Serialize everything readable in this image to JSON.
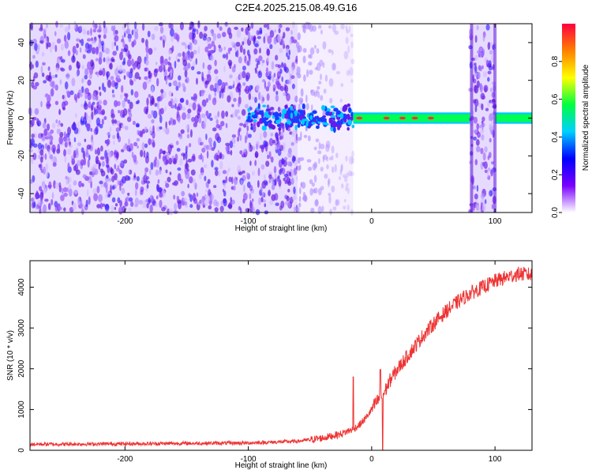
{
  "title": "C2E4.2025.215.08.49.G16",
  "chart_data": [
    {
      "type": "heatmap",
      "xlabel": "Height of straight line (km)",
      "ylabel": "Frequency (Hz)",
      "xlim": [
        -277,
        130
      ],
      "ylim": [
        -50,
        50
      ],
      "xticks": [
        -200,
        -100,
        0,
        100
      ],
      "yticks": [
        -40,
        -20,
        0,
        20,
        40
      ],
      "colorbar": {
        "label": "Normalized spectral amplitude",
        "range": [
          0,
          1
        ],
        "ticks": [
          "0.0",
          "0.2",
          "0.4",
          "0.6",
          "0.8"
        ],
        "colormap": [
          "#ffffff",
          "#7a00ff",
          "#0000ff",
          "#00d0ff",
          "#00ff40",
          "#ffff00",
          "#ff8000",
          "#ff0040"
        ]
      },
      "regions": [
        {
          "x": [
            -277,
            -60
          ],
          "freq": [
            -50,
            50
          ],
          "amplitude": "0.05-0.25",
          "color": "#7a20f0"
        },
        {
          "x": [
            -60,
            -15
          ],
          "freq": [
            -50,
            50
          ],
          "amplitude": "0.02-0.15",
          "color": "#c8a8ff"
        },
        {
          "x": [
            -100,
            -15
          ],
          "freq": [
            -7,
            7
          ],
          "amplitude": "0.2-0.45",
          "color": "#2050ff"
        },
        {
          "x": [
            -15,
            80
          ],
          "freq": [
            -2,
            2
          ],
          "amplitude": "0.4-0.95",
          "color": "#00ff50"
        },
        {
          "x": [
            80,
            100
          ],
          "freq": [
            -50,
            50
          ],
          "amplitude": "0.05-0.3",
          "color": "#b080ff"
        },
        {
          "x": [
            100,
            130
          ],
          "freq": [
            -2,
            2
          ],
          "amplitude": "0.4-0.6",
          "color": "#00ff50"
        }
      ]
    },
    {
      "type": "line",
      "xlabel": "Height of straight line (km)",
      "ylabel": "SNR (10 * v/v)",
      "xlim": [
        -277,
        130
      ],
      "ylim": [
        0,
        4650
      ],
      "xticks": [
        -200,
        -100,
        0,
        100
      ],
      "yticks": [
        0,
        1000,
        2000,
        3000,
        4000
      ],
      "color": "#ee3333",
      "series": [
        {
          "x": [
            -277,
            -250,
            -200,
            -150,
            -100,
            -60,
            -40,
            -25,
            -15,
            -10,
            -5,
            0,
            5,
            8,
            10,
            15,
            20,
            30,
            40,
            50,
            60,
            70,
            80,
            90,
            100,
            110,
            120,
            130
          ],
          "y": [
            150,
            150,
            160,
            170,
            180,
            220,
            300,
            400,
            520,
            620,
            780,
            1000,
            1220,
            1300,
            1400,
            1720,
            1950,
            2350,
            2750,
            3100,
            3400,
            3650,
            3850,
            4000,
            4150,
            4250,
            4330,
            4300
          ]
        }
      ],
      "spikes": [
        {
          "x": -15,
          "y": 1800
        },
        {
          "x": 7,
          "y": 1980
        },
        {
          "x": 9,
          "y": 0
        }
      ]
    }
  ]
}
